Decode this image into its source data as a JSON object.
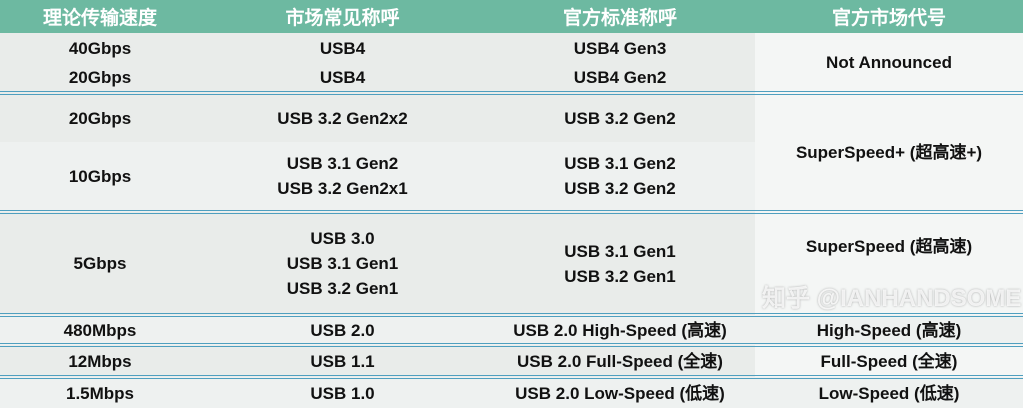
{
  "headers": [
    "理论传输速度",
    "市场常见称呼",
    "官方标准称呼",
    "官方市场代号"
  ],
  "rows": [
    {
      "speed": "40Gbps",
      "common": [
        "USB4"
      ],
      "official": [
        "USB4 Gen3"
      ]
    },
    {
      "speed": "20Gbps",
      "common": [
        "USB4"
      ],
      "official": [
        "USB4 Gen2"
      ]
    },
    {
      "speed": "20Gbps",
      "common": [
        "USB 3.2 Gen2x2"
      ],
      "official": [
        "USB 3.2 Gen2"
      ]
    },
    {
      "speed": "10Gbps",
      "common": [
        "USB 3.1 Gen2",
        "USB 3.2 Gen2x1"
      ],
      "official": [
        "USB 3.1 Gen2",
        "USB 3.2 Gen2"
      ]
    },
    {
      "speed": "5Gbps",
      "common": [
        "USB 3.0",
        "USB 3.1 Gen1",
        "USB 3.2 Gen1"
      ],
      "official": [
        "USB 3.1 Gen1",
        "USB 3.2 Gen1"
      ]
    },
    {
      "speed": "480Mbps",
      "common": [
        "USB 2.0"
      ],
      "official": [
        "USB 2.0 High-Speed (高速)"
      ]
    },
    {
      "speed": "12Mbps",
      "common": [
        "USB 1.1"
      ],
      "official": [
        "USB 2.0 Full-Speed (全速)"
      ]
    },
    {
      "speed": "1.5Mbps",
      "common": [
        "USB 1.0"
      ],
      "official": [
        "USB 2.0 Low-Speed (低速)"
      ]
    }
  ],
  "market_codes": [
    "Not Announced",
    "SuperSpeed+ (超高速+)",
    "SuperSpeed (超高速)",
    "High-Speed (高速)",
    "Full-Speed (全速)",
    "Low-Speed (低速)"
  ],
  "watermark": "知乎 @IANHANDSOME",
  "colors": {
    "header": "#6db9a1",
    "separator": "#4f9fbf"
  }
}
